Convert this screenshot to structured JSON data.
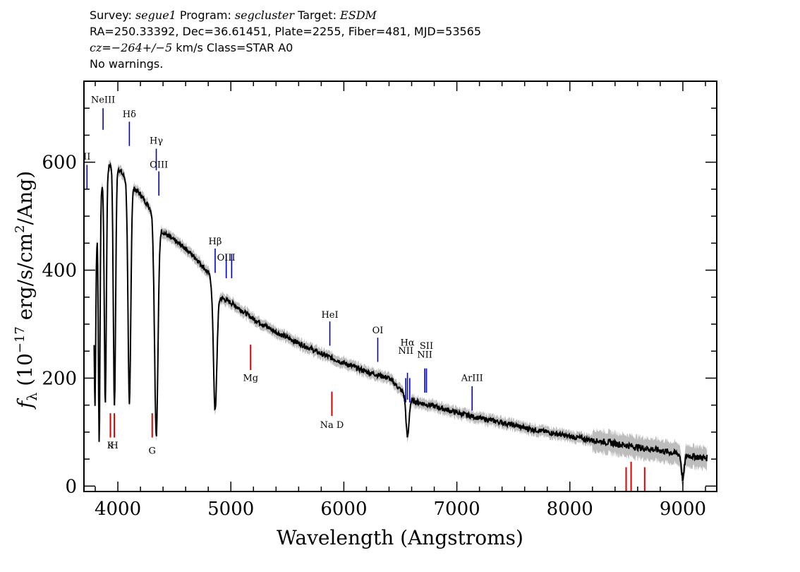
{
  "header": {
    "line1": {
      "survey_label": "Survey: ",
      "survey": "segue1",
      "program_label": " Program: ",
      "program": "segcluster",
      "target_label": " Target: ",
      "target": "ESDM"
    },
    "line2": "RA=250.33392, Dec=36.61451, Plate=2255, Fiber=481, MJD=53565",
    "line3": {
      "cz_label": "cz",
      "eq": "=",
      "cz_value": "−264+/−5",
      "rest": " km/s Class=STAR A0"
    },
    "line4": "No warnings."
  },
  "chart_data": {
    "type": "line",
    "title": "",
    "xlabel": "Wavelength (Angstroms)",
    "ylabel": "fλ (10⁻¹⁷ erg/s/cm²/Ang)",
    "ylabel_main": "f",
    "ylabel_sub": "λ",
    "ylabel_rest": " (10",
    "ylabel_exp1": "−17",
    "ylabel_mid": " erg/s/cm",
    "ylabel_exp2": "2",
    "ylabel_end": "/Ang)",
    "xlim": [
      3700,
      9300
    ],
    "ylim": [
      -10,
      750
    ],
    "xticks": [
      4000,
      5000,
      6000,
      7000,
      8000,
      9000
    ],
    "xtick_labels": [
      "4000",
      "5000",
      "6000",
      "7000",
      "8000",
      "9000"
    ],
    "yticks": [
      0,
      200,
      400,
      600
    ],
    "ytick_labels": [
      "0",
      "200",
      "400",
      "600"
    ],
    "grid": false,
    "colors": {
      "spectrum": "#000000",
      "error_band": "#bdbdbd",
      "emission": "#0000cc",
      "absorption": "#dd0000"
    },
    "continuum": [
      [
        3790,
        360
      ],
      [
        3830,
        520
      ],
      [
        3880,
        580
      ],
      [
        3950,
        600
      ],
      [
        4000,
        590
      ],
      [
        4050,
        575
      ],
      [
        4100,
        560
      ],
      [
        4200,
        540
      ],
      [
        4300,
        510
      ],
      [
        4400,
        470
      ],
      [
        4500,
        455
      ],
      [
        4600,
        440
      ],
      [
        4700,
        420
      ],
      [
        4800,
        395
      ],
      [
        4850,
        375
      ],
      [
        4900,
        350
      ],
      [
        5000,
        340
      ],
      [
        5100,
        325
      ],
      [
        5200,
        310
      ],
      [
        5400,
        285
      ],
      [
        5600,
        265
      ],
      [
        5800,
        245
      ],
      [
        6000,
        228
      ],
      [
        6200,
        212
      ],
      [
        6400,
        200
      ],
      [
        6600,
        158
      ],
      [
        6800,
        148
      ],
      [
        7000,
        136
      ],
      [
        7200,
        126
      ],
      [
        7400,
        118
      ],
      [
        7600,
        108
      ],
      [
        7800,
        100
      ],
      [
        8000,
        92
      ],
      [
        8200,
        85
      ],
      [
        8400,
        79
      ],
      [
        8600,
        72
      ],
      [
        8800,
        66
      ],
      [
        9000,
        58
      ],
      [
        9200,
        52
      ]
    ],
    "absorption_features": [
      {
        "center": 3798,
        "depth": 240,
        "width": 6
      },
      {
        "center": 3835,
        "depth": 450,
        "width": 7
      },
      {
        "center": 3889,
        "depth": 430,
        "width": 9
      },
      {
        "center": 3970,
        "depth": 450,
        "width": 10
      },
      {
        "center": 4102,
        "depth": 410,
        "width": 12
      },
      {
        "center": 4340,
        "depth": 400,
        "width": 15
      },
      {
        "center": 4861,
        "depth": 230,
        "width": 15
      },
      {
        "center": 6563,
        "depth": 75,
        "width": 13
      },
      {
        "center": 9000,
        "depth": 45,
        "width": 12
      }
    ],
    "emission_lines": [
      {
        "label": "NeIII",
        "x": 3869,
        "y1": 660,
        "y2": 700,
        "label_y": 710
      },
      {
        "label": "Hδ",
        "x": 4102,
        "y1": 630,
        "y2": 675,
        "label_y": 683
      },
      {
        "label": "Hγ",
        "x": 4340,
        "y1": 585,
        "y2": 625,
        "label_y": 634
      },
      {
        "label": "OIII",
        "x": 4363,
        "y1": 538,
        "y2": 583,
        "label_y": 590
      },
      {
        "label": "II",
        "x": 3727,
        "y1": 550,
        "y2": 595,
        "label_y": 605
      },
      {
        "label": "Hβ",
        "x": 4861,
        "y1": 395,
        "y2": 440,
        "label_y": 448
      },
      {
        "label": "OIII",
        "x": 4959,
        "y1": 385,
        "y2": 430,
        "label_y": 418
      },
      {
        "label": "",
        "x": 5007,
        "y1": 385,
        "y2": 430,
        "label_y": 0
      },
      {
        "label": "HeI",
        "x": 5876,
        "y1": 260,
        "y2": 305,
        "label_y": 312
      },
      {
        "label": "OI",
        "x": 6300,
        "y1": 230,
        "y2": 275,
        "label_y": 283
      },
      {
        "label": "NII",
        "x": 6548,
        "y1": 155,
        "y2": 200,
        "label_y": 245
      },
      {
        "label": "Hα",
        "x": 6563,
        "y1": 160,
        "y2": 210,
        "label_y": 260
      },
      {
        "label": "",
        "x": 6583,
        "y1": 155,
        "y2": 200,
        "label_y": 0
      },
      {
        "label": "NII",
        "x": 6716,
        "y1": 173,
        "y2": 218,
        "label_y": 238
      },
      {
        "label": "SII",
        "x": 6731,
        "y1": 173,
        "y2": 218,
        "label_y": 254
      },
      {
        "label": "ArIII",
        "x": 7135,
        "y1": 140,
        "y2": 185,
        "label_y": 195
      }
    ],
    "absorption_lines": [
      {
        "label": "K",
        "x": 3934,
        "y1": 90,
        "y2": 135,
        "label_y": 70
      },
      {
        "label": "H",
        "x": 3969,
        "y1": 90,
        "y2": 135,
        "label_y": 70
      },
      {
        "label": "G",
        "x": 4304,
        "y1": 90,
        "y2": 135,
        "label_y": 60
      },
      {
        "label": "Mg",
        "x": 5175,
        "y1": 215,
        "y2": 262,
        "label_y": 195
      },
      {
        "label": "Na D",
        "x": 5894,
        "y1": 130,
        "y2": 175,
        "label_y": 108
      },
      {
        "label": "",
        "x": 8498,
        "y1": -10,
        "y2": 35,
        "label_y": 0
      },
      {
        "label": "",
        "x": 8542,
        "y1": -10,
        "y2": 45,
        "label_y": 0
      },
      {
        "label": "",
        "x": 8662,
        "y1": -10,
        "y2": 35,
        "label_y": 0
      }
    ]
  }
}
